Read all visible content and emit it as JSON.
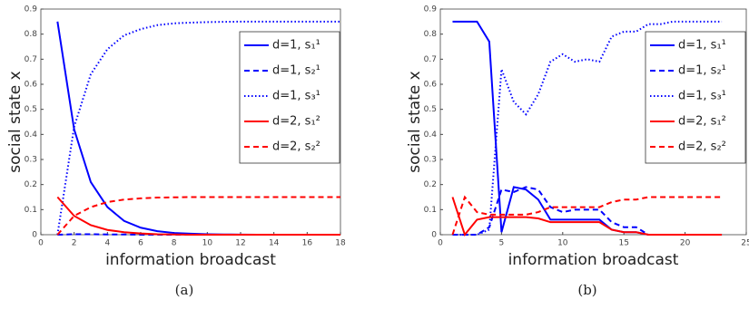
{
  "chart_data": [
    {
      "type": "line",
      "caption": "(a)",
      "x_label": "information broadcast",
      "y_label": "social state x",
      "x": [
        1,
        2,
        3,
        4,
        5,
        6,
        7,
        8,
        9,
        10,
        11,
        12,
        13,
        14,
        15,
        16,
        17,
        18
      ],
      "xlim": [
        0,
        18
      ],
      "xticks": [
        0,
        2,
        4,
        6,
        8,
        10,
        12,
        14,
        16,
        18
      ],
      "ylim": [
        0,
        0.9
      ],
      "yticks": [
        0,
        0.1,
        0.2,
        0.3,
        0.4,
        0.5,
        0.6,
        0.7,
        0.8,
        0.9
      ],
      "legend": "upper right",
      "series": [
        {
          "name": "d=1, s₁¹",
          "color": "#0000ff",
          "dash": "solid",
          "values": [
            0.85,
            0.42,
            0.21,
            0.11,
            0.055,
            0.028,
            0.014,
            0.007,
            0.004,
            0.002,
            0.001,
            0.0005,
            0,
            0,
            0,
            0,
            0,
            0
          ]
        },
        {
          "name": "d=1, s₂¹",
          "color": "#0000ff",
          "dash": "dashed",
          "values": [
            0,
            0.002,
            0.002,
            0.001,
            0.001,
            0,
            0,
            0,
            0,
            0,
            0,
            0,
            0,
            0,
            0,
            0,
            0,
            0
          ]
        },
        {
          "name": "d=1, s₃¹",
          "color": "#0000ff",
          "dash": "dotted",
          "values": [
            0,
            0.43,
            0.64,
            0.74,
            0.795,
            0.82,
            0.836,
            0.843,
            0.846,
            0.848,
            0.849,
            0.85,
            0.85,
            0.85,
            0.85,
            0.85,
            0.85,
            0.85
          ]
        },
        {
          "name": "d=2, s₁²",
          "color": "#ff0000",
          "dash": "solid",
          "values": [
            0.15,
            0.075,
            0.038,
            0.019,
            0.01,
            0.005,
            0.002,
            0.001,
            0,
            0,
            0,
            0,
            0,
            0,
            0,
            0,
            0,
            0
          ]
        },
        {
          "name": "d=2, s₂²",
          "color": "#ff0000",
          "dash": "dashed",
          "values": [
            0,
            0.075,
            0.11,
            0.13,
            0.14,
            0.145,
            0.148,
            0.149,
            0.15,
            0.15,
            0.15,
            0.15,
            0.15,
            0.15,
            0.15,
            0.15,
            0.15,
            0.15
          ]
        }
      ]
    },
    {
      "type": "line",
      "caption": "(b)",
      "x_label": "information broadcast",
      "y_label": "social state x",
      "x": [
        1,
        2,
        3,
        4,
        5,
        6,
        7,
        8,
        9,
        10,
        11,
        12,
        13,
        14,
        15,
        16,
        17,
        18,
        19,
        20,
        21,
        22,
        23
      ],
      "xlim": [
        0,
        25
      ],
      "xticks": [
        0,
        5,
        10,
        15,
        20,
        25
      ],
      "ylim": [
        0,
        0.9
      ],
      "yticks": [
        0,
        0.1,
        0.2,
        0.3,
        0.4,
        0.5,
        0.6,
        0.7,
        0.8,
        0.9
      ],
      "legend": "upper right",
      "series": [
        {
          "name": "d=1, s₁¹",
          "color": "#0000ff",
          "dash": "solid",
          "values": [
            0.85,
            0.85,
            0.85,
            0.77,
            0.01,
            0.19,
            0.18,
            0.14,
            0.06,
            0.06,
            0.06,
            0.06,
            0.06,
            0.02,
            0.01,
            0.01,
            0,
            0,
            0,
            0,
            0,
            0,
            0
          ]
        },
        {
          "name": "d=1, s₂¹",
          "color": "#0000ff",
          "dash": "dashed",
          "values": [
            0,
            0,
            0,
            0.03,
            0.18,
            0.17,
            0.19,
            0.18,
            0.11,
            0.09,
            0.1,
            0.1,
            0.1,
            0.05,
            0.03,
            0.03,
            0,
            0,
            0,
            0,
            0,
            0,
            0
          ]
        },
        {
          "name": "d=1, s₃¹",
          "color": "#0000ff",
          "dash": "dotted",
          "values": [
            0,
            0,
            0,
            0.02,
            0.66,
            0.53,
            0.48,
            0.56,
            0.69,
            0.72,
            0.69,
            0.7,
            0.69,
            0.79,
            0.81,
            0.81,
            0.84,
            0.84,
            0.85,
            0.85,
            0.85,
            0.85,
            0.85
          ]
        },
        {
          "name": "d=2, s₁²",
          "color": "#ff0000",
          "dash": "solid",
          "values": [
            0.15,
            0,
            0.06,
            0.07,
            0.07,
            0.07,
            0.07,
            0.065,
            0.05,
            0.05,
            0.05,
            0.05,
            0.05,
            0.02,
            0.01,
            0.01,
            0,
            0,
            0,
            0,
            0,
            0,
            0
          ]
        },
        {
          "name": "d=2, s₂²",
          "color": "#ff0000",
          "dash": "dashed",
          "values": [
            0,
            0.15,
            0.09,
            0.08,
            0.08,
            0.08,
            0.08,
            0.09,
            0.11,
            0.11,
            0.11,
            0.11,
            0.11,
            0.13,
            0.14,
            0.14,
            0.15,
            0.15,
            0.15,
            0.15,
            0.15,
            0.15,
            0.15
          ]
        }
      ]
    }
  ]
}
